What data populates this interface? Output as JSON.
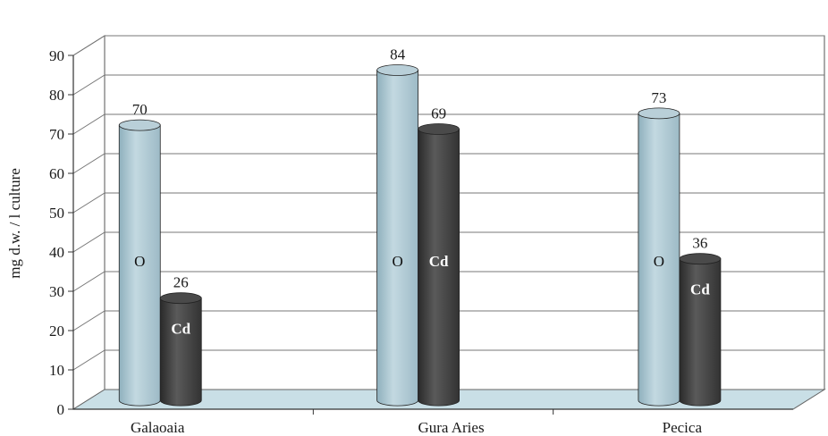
{
  "chart_data": {
    "type": "bar",
    "ylabel": "mg d.w. / l culture",
    "ylim": [
      0,
      90
    ],
    "yticks": [
      0,
      10,
      20,
      30,
      40,
      50,
      60,
      70,
      80,
      90
    ],
    "grid": true,
    "categories": [
      "Galaoaia",
      "Gura Aries",
      "Pecica"
    ],
    "series": [
      {
        "name": "O",
        "values": [
          70,
          84,
          73
        ],
        "color": "#a9c4cf"
      },
      {
        "name": "Cd",
        "values": [
          26,
          69,
          36
        ],
        "color": "#3d3d3d"
      }
    ],
    "floor_color": "#c9dfe6"
  }
}
